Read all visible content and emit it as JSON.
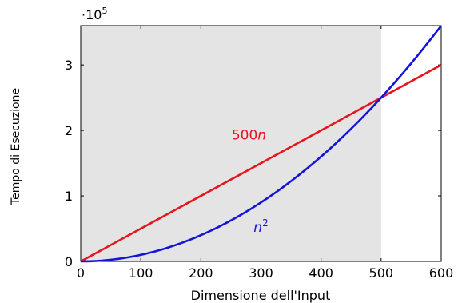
{
  "chart_data": {
    "type": "line",
    "title": "",
    "xlabel": "Dimensione dell'Input",
    "ylabel": "Tempo di Esecuzione",
    "xlim": [
      0,
      600
    ],
    "ylim": [
      0,
      360000
    ],
    "x_ticks": [
      0,
      100,
      200,
      300,
      400,
      500,
      600
    ],
    "y_ticks": [
      0,
      100000,
      200000,
      300000
    ],
    "y_tick_labels": [
      "0",
      "1",
      "2",
      "3"
    ],
    "y_multiplier": {
      "prefix": "·10",
      "exponent": "5"
    },
    "shaded_region": {
      "x_from": 0,
      "x_to": 500,
      "color": "#e4e4e4"
    },
    "grid": false,
    "legend": "none",
    "series": [
      {
        "name": "500n",
        "label_main": "500",
        "label_var": "n",
        "formula": "500*x",
        "color": "#e8141b",
        "x": [
          0,
          100,
          200,
          300,
          400,
          500,
          600
        ],
        "y": [
          0,
          50000,
          100000,
          150000,
          200000,
          250000,
          300000
        ],
        "label_anchor": {
          "x": 280,
          "y": 186000
        }
      },
      {
        "name": "n^2",
        "label_main": "n",
        "label_sup": "2",
        "formula": "x^2",
        "color": "#1414d8",
        "x": [
          0,
          100,
          200,
          300,
          400,
          500,
          600
        ],
        "y": [
          0,
          10000,
          40000,
          90000,
          160000,
          250000,
          360000
        ],
        "label_anchor": {
          "x": 300,
          "y": 45000
        }
      }
    ]
  }
}
